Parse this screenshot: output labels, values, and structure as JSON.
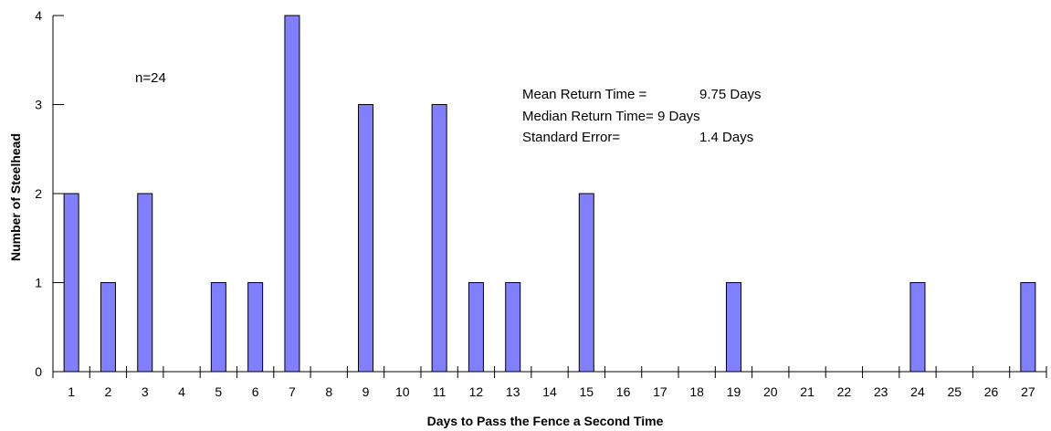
{
  "chart_data": {
    "type": "bar",
    "xlabel": "Days to Pass the Fence a Second Time",
    "ylabel": "Number of Steelhead",
    "categories": [
      "1",
      "2",
      "3",
      "4",
      "5",
      "6",
      "7",
      "8",
      "9",
      "10",
      "11",
      "12",
      "13",
      "14",
      "15",
      "16",
      "17",
      "18",
      "19",
      "20",
      "21",
      "22",
      "23",
      "24",
      "25",
      "26",
      "27"
    ],
    "values": [
      2,
      1,
      2,
      0,
      1,
      1,
      4,
      0,
      3,
      0,
      3,
      1,
      1,
      0,
      2,
      0,
      0,
      0,
      1,
      0,
      0,
      0,
      0,
      1,
      0,
      0,
      1
    ],
    "ylim": [
      0,
      4
    ],
    "yticks": [
      "0",
      "1",
      "2",
      "3",
      "4"
    ],
    "grid": false,
    "bar_color": "#8080ff",
    "bar_edge_color": "#000000",
    "annotations": {
      "n": "n=24",
      "stats": [
        {
          "label": "Mean Return Time =",
          "value": "9.75 Days"
        },
        {
          "label": "Median Return Time= 9 Days",
          "value": ""
        },
        {
          "label": "Standard Error=",
          "value": "1.4 Days"
        }
      ]
    }
  }
}
